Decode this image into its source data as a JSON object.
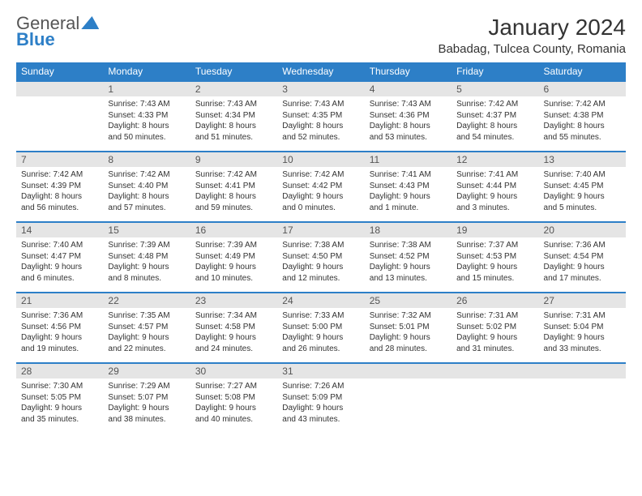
{
  "brand": {
    "part1": "General",
    "part2": "Blue"
  },
  "title": "January 2024",
  "location": "Babadag, Tulcea County, Romania",
  "colors": {
    "header_bg": "#2d7fc7",
    "header_text": "#ffffff",
    "daynum_bg": "#e5e5e5",
    "row_border": "#2d7fc7",
    "text": "#333333"
  },
  "days_of_week": [
    "Sunday",
    "Monday",
    "Tuesday",
    "Wednesday",
    "Thursday",
    "Friday",
    "Saturday"
  ],
  "weeks": [
    [
      {
        "num": "",
        "sunrise": "",
        "sunset": "",
        "daylight1": "",
        "daylight2": ""
      },
      {
        "num": "1",
        "sunrise": "Sunrise: 7:43 AM",
        "sunset": "Sunset: 4:33 PM",
        "daylight1": "Daylight: 8 hours",
        "daylight2": "and 50 minutes."
      },
      {
        "num": "2",
        "sunrise": "Sunrise: 7:43 AM",
        "sunset": "Sunset: 4:34 PM",
        "daylight1": "Daylight: 8 hours",
        "daylight2": "and 51 minutes."
      },
      {
        "num": "3",
        "sunrise": "Sunrise: 7:43 AM",
        "sunset": "Sunset: 4:35 PM",
        "daylight1": "Daylight: 8 hours",
        "daylight2": "and 52 minutes."
      },
      {
        "num": "4",
        "sunrise": "Sunrise: 7:43 AM",
        "sunset": "Sunset: 4:36 PM",
        "daylight1": "Daylight: 8 hours",
        "daylight2": "and 53 minutes."
      },
      {
        "num": "5",
        "sunrise": "Sunrise: 7:42 AM",
        "sunset": "Sunset: 4:37 PM",
        "daylight1": "Daylight: 8 hours",
        "daylight2": "and 54 minutes."
      },
      {
        "num": "6",
        "sunrise": "Sunrise: 7:42 AM",
        "sunset": "Sunset: 4:38 PM",
        "daylight1": "Daylight: 8 hours",
        "daylight2": "and 55 minutes."
      }
    ],
    [
      {
        "num": "7",
        "sunrise": "Sunrise: 7:42 AM",
        "sunset": "Sunset: 4:39 PM",
        "daylight1": "Daylight: 8 hours",
        "daylight2": "and 56 minutes."
      },
      {
        "num": "8",
        "sunrise": "Sunrise: 7:42 AM",
        "sunset": "Sunset: 4:40 PM",
        "daylight1": "Daylight: 8 hours",
        "daylight2": "and 57 minutes."
      },
      {
        "num": "9",
        "sunrise": "Sunrise: 7:42 AM",
        "sunset": "Sunset: 4:41 PM",
        "daylight1": "Daylight: 8 hours",
        "daylight2": "and 59 minutes."
      },
      {
        "num": "10",
        "sunrise": "Sunrise: 7:42 AM",
        "sunset": "Sunset: 4:42 PM",
        "daylight1": "Daylight: 9 hours",
        "daylight2": "and 0 minutes."
      },
      {
        "num": "11",
        "sunrise": "Sunrise: 7:41 AM",
        "sunset": "Sunset: 4:43 PM",
        "daylight1": "Daylight: 9 hours",
        "daylight2": "and 1 minute."
      },
      {
        "num": "12",
        "sunrise": "Sunrise: 7:41 AM",
        "sunset": "Sunset: 4:44 PM",
        "daylight1": "Daylight: 9 hours",
        "daylight2": "and 3 minutes."
      },
      {
        "num": "13",
        "sunrise": "Sunrise: 7:40 AM",
        "sunset": "Sunset: 4:45 PM",
        "daylight1": "Daylight: 9 hours",
        "daylight2": "and 5 minutes."
      }
    ],
    [
      {
        "num": "14",
        "sunrise": "Sunrise: 7:40 AM",
        "sunset": "Sunset: 4:47 PM",
        "daylight1": "Daylight: 9 hours",
        "daylight2": "and 6 minutes."
      },
      {
        "num": "15",
        "sunrise": "Sunrise: 7:39 AM",
        "sunset": "Sunset: 4:48 PM",
        "daylight1": "Daylight: 9 hours",
        "daylight2": "and 8 minutes."
      },
      {
        "num": "16",
        "sunrise": "Sunrise: 7:39 AM",
        "sunset": "Sunset: 4:49 PM",
        "daylight1": "Daylight: 9 hours",
        "daylight2": "and 10 minutes."
      },
      {
        "num": "17",
        "sunrise": "Sunrise: 7:38 AM",
        "sunset": "Sunset: 4:50 PM",
        "daylight1": "Daylight: 9 hours",
        "daylight2": "and 12 minutes."
      },
      {
        "num": "18",
        "sunrise": "Sunrise: 7:38 AM",
        "sunset": "Sunset: 4:52 PM",
        "daylight1": "Daylight: 9 hours",
        "daylight2": "and 13 minutes."
      },
      {
        "num": "19",
        "sunrise": "Sunrise: 7:37 AM",
        "sunset": "Sunset: 4:53 PM",
        "daylight1": "Daylight: 9 hours",
        "daylight2": "and 15 minutes."
      },
      {
        "num": "20",
        "sunrise": "Sunrise: 7:36 AM",
        "sunset": "Sunset: 4:54 PM",
        "daylight1": "Daylight: 9 hours",
        "daylight2": "and 17 minutes."
      }
    ],
    [
      {
        "num": "21",
        "sunrise": "Sunrise: 7:36 AM",
        "sunset": "Sunset: 4:56 PM",
        "daylight1": "Daylight: 9 hours",
        "daylight2": "and 19 minutes."
      },
      {
        "num": "22",
        "sunrise": "Sunrise: 7:35 AM",
        "sunset": "Sunset: 4:57 PM",
        "daylight1": "Daylight: 9 hours",
        "daylight2": "and 22 minutes."
      },
      {
        "num": "23",
        "sunrise": "Sunrise: 7:34 AM",
        "sunset": "Sunset: 4:58 PM",
        "daylight1": "Daylight: 9 hours",
        "daylight2": "and 24 minutes."
      },
      {
        "num": "24",
        "sunrise": "Sunrise: 7:33 AM",
        "sunset": "Sunset: 5:00 PM",
        "daylight1": "Daylight: 9 hours",
        "daylight2": "and 26 minutes."
      },
      {
        "num": "25",
        "sunrise": "Sunrise: 7:32 AM",
        "sunset": "Sunset: 5:01 PM",
        "daylight1": "Daylight: 9 hours",
        "daylight2": "and 28 minutes."
      },
      {
        "num": "26",
        "sunrise": "Sunrise: 7:31 AM",
        "sunset": "Sunset: 5:02 PM",
        "daylight1": "Daylight: 9 hours",
        "daylight2": "and 31 minutes."
      },
      {
        "num": "27",
        "sunrise": "Sunrise: 7:31 AM",
        "sunset": "Sunset: 5:04 PM",
        "daylight1": "Daylight: 9 hours",
        "daylight2": "and 33 minutes."
      }
    ],
    [
      {
        "num": "28",
        "sunrise": "Sunrise: 7:30 AM",
        "sunset": "Sunset: 5:05 PM",
        "daylight1": "Daylight: 9 hours",
        "daylight2": "and 35 minutes."
      },
      {
        "num": "29",
        "sunrise": "Sunrise: 7:29 AM",
        "sunset": "Sunset: 5:07 PM",
        "daylight1": "Daylight: 9 hours",
        "daylight2": "and 38 minutes."
      },
      {
        "num": "30",
        "sunrise": "Sunrise: 7:27 AM",
        "sunset": "Sunset: 5:08 PM",
        "daylight1": "Daylight: 9 hours",
        "daylight2": "and 40 minutes."
      },
      {
        "num": "31",
        "sunrise": "Sunrise: 7:26 AM",
        "sunset": "Sunset: 5:09 PM",
        "daylight1": "Daylight: 9 hours",
        "daylight2": "and 43 minutes."
      },
      {
        "num": "",
        "sunrise": "",
        "sunset": "",
        "daylight1": "",
        "daylight2": ""
      },
      {
        "num": "",
        "sunrise": "",
        "sunset": "",
        "daylight1": "",
        "daylight2": ""
      },
      {
        "num": "",
        "sunrise": "",
        "sunset": "",
        "daylight1": "",
        "daylight2": ""
      }
    ]
  ]
}
